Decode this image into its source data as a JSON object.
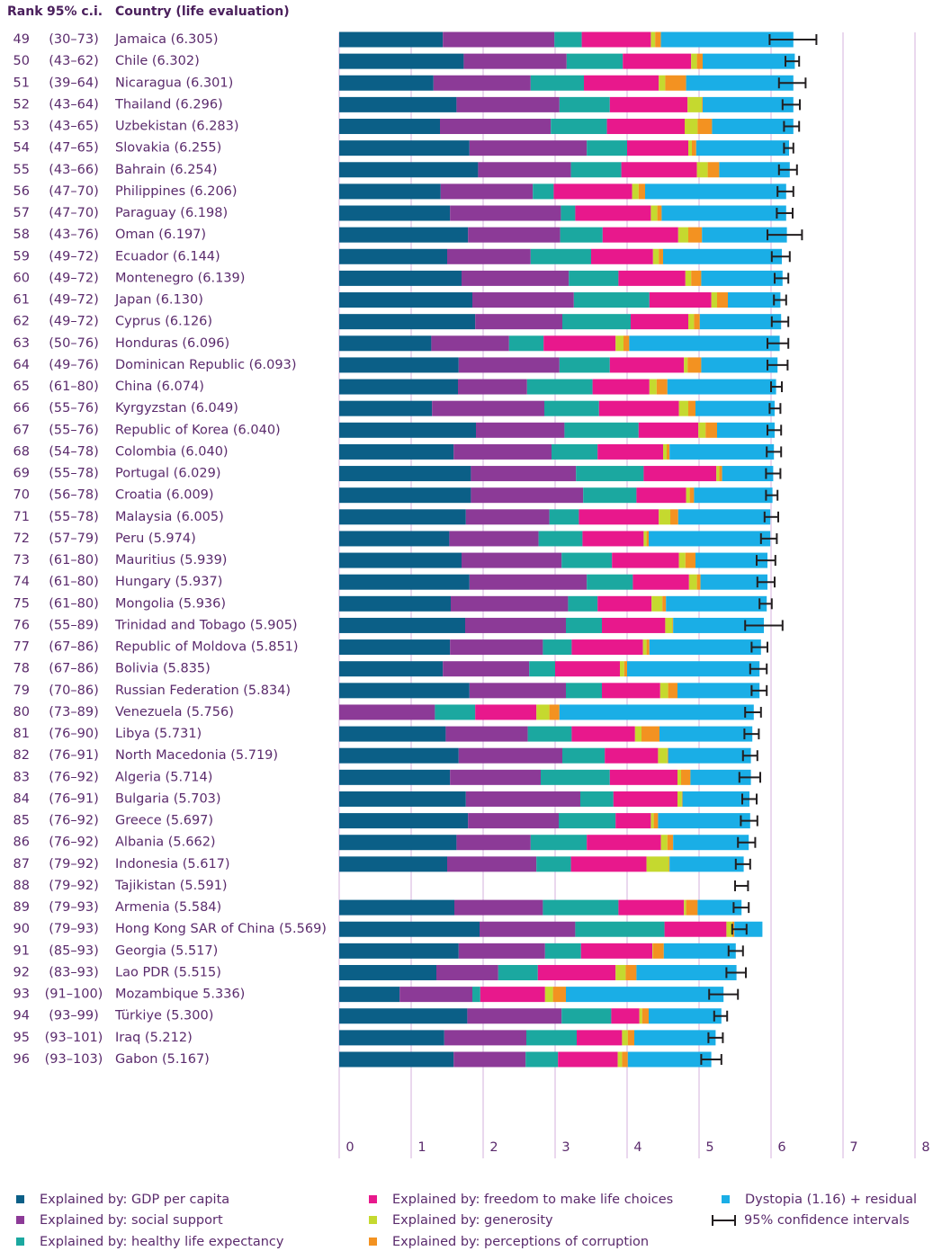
{
  "chart_data": {
    "type": "bar",
    "orientation": "horizontal",
    "stacked": true,
    "headers": [
      "Rank",
      "95% c.i.",
      "Country (life evaluation)"
    ],
    "ranks": [
      49,
      50,
      51,
      52,
      53,
      54,
      55,
      56,
      57,
      58,
      59,
      60,
      61,
      62,
      63,
      64,
      65,
      66,
      67,
      68,
      69,
      70,
      71,
      72,
      73,
      74,
      75,
      76,
      77,
      78,
      79,
      80,
      81,
      82,
      83,
      84,
      85,
      86,
      87,
      88,
      89,
      90,
      91,
      92,
      93,
      94,
      95,
      96
    ],
    "ci_text": [
      "(30–73)",
      "(43–62)",
      "(39–64)",
      "(43–64)",
      "(43–65)",
      "(47–65)",
      "(43–66)",
      "(47–70)",
      "(47–70)",
      "(43–76)",
      "(49–72)",
      "(49–72)",
      "(49–72)",
      "(49–72)",
      "(50–76)",
      "(49–76)",
      "(61–80)",
      "(55–76)",
      "(55–76)",
      "(54–78)",
      "(55–78)",
      "(56–78)",
      "(55–78)",
      "(57–79)",
      "(61–80)",
      "(61–80)",
      "(61–80)",
      "(55–89)",
      "(67–86)",
      "(67–86)",
      "(70–86)",
      "(73–89)",
      "(76–90)",
      "(76–91)",
      "(76–92)",
      "(76–91)",
      "(76–92)",
      "(76–92)",
      "(79–92)",
      "(79–92)",
      "(79–93)",
      "(79–93)",
      "(85–93)",
      "(83–93)",
      "(91–100)",
      "(93–99)",
      "(93–101)",
      "(93–103)"
    ],
    "categories": [
      "Jamaica (6.305)",
      "Chile (6.302)",
      "Nicaragua (6.301)",
      "Thailand (6.296)",
      "Uzbekistan (6.283)",
      "Slovakia (6.255)",
      "Bahrain (6.254)",
      "Philippines (6.206)",
      "Paraguay (6.198)",
      "Oman (6.197)",
      "Ecuador (6.144)",
      "Montenegro (6.139)",
      "Japan (6.130)",
      "Cyprus (6.126)",
      "Honduras (6.096)",
      "Dominican Republic (6.093)",
      "China (6.074)",
      "Kyrgyzstan (6.049)",
      "Republic of Korea (6.040)",
      "Colombia (6.040)",
      "Portugal (6.029)",
      "Croatia (6.009)",
      "Malaysia (6.005)",
      "Peru (5.974)",
      "Mauritius (5.939)",
      "Hungary (5.937)",
      "Mongolia (5.936)",
      "Trinidad and Tobago (5.905)",
      "Republic of Moldova (5.851)",
      "Bolivia (5.835)",
      "Russian Federation (5.834)",
      "Venezuela (5.756)",
      "Libya (5.731)",
      "North Macedonia (5.719)",
      "Algeria (5.714)",
      "Bulgaria (5.703)",
      "Greece (5.697)",
      "Albania (5.662)",
      "Indonesia (5.617)",
      "Tajikistan (5.591)",
      "Armenia  (5.584)",
      "Hong Kong SAR of China (5.569)",
      "Georgia (5.517)",
      "Lao PDR (5.515)",
      "Mozambique 5.336)",
      "Türkiye (5.300)",
      "Iraq (5.212)",
      "Gabon (5.167)"
    ],
    "series": [
      {
        "name": "Explained by: GDP per capita",
        "color": "#0b5f87",
        "values": [
          1.44,
          1.73,
          1.31,
          1.63,
          1.4,
          1.81,
          1.93,
          1.41,
          1.54,
          1.79,
          1.5,
          1.7,
          1.85,
          1.89,
          1.28,
          1.66,
          1.65,
          1.29,
          1.9,
          1.59,
          1.83,
          1.83,
          1.76,
          1.53,
          1.7,
          1.81,
          1.55,
          1.75,
          1.54,
          1.44,
          1.81,
          0,
          1.48,
          1.66,
          1.54,
          1.76,
          1.79,
          1.63,
          1.5,
          null,
          1.6,
          1.95,
          1.66,
          1.35,
          0.84,
          1.78,
          1.46,
          1.59
        ]
      },
      {
        "name": "Explained by: social support",
        "color": "#8c3a97",
        "values": [
          1.55,
          1.43,
          1.35,
          1.43,
          1.54,
          1.63,
          1.29,
          1.28,
          1.54,
          1.28,
          1.16,
          1.49,
          1.41,
          1.21,
          1.08,
          1.4,
          0.96,
          1.56,
          1.23,
          1.36,
          1.46,
          1.56,
          1.16,
          1.24,
          1.39,
          1.63,
          1.63,
          1.4,
          1.29,
          1.2,
          1.34,
          1.33,
          1.14,
          1.44,
          1.26,
          1.59,
          1.26,
          1.03,
          1.24,
          null,
          1.23,
          1.33,
          1.2,
          0.86,
          1.01,
          1.31,
          1.14,
          1.0
        ]
      },
      {
        "name": "Explained by: healthy life expectancy",
        "color": "#1ba8a0",
        "values": [
          0.38,
          0.78,
          0.74,
          0.7,
          0.78,
          0.56,
          0.7,
          0.29,
          0.2,
          0.59,
          0.84,
          0.69,
          1.05,
          0.95,
          0.48,
          0.7,
          0.91,
          0.76,
          1.03,
          0.64,
          0.94,
          0.74,
          0.41,
          0.61,
          0.7,
          0.64,
          0.41,
          0.5,
          0.4,
          0.36,
          0.5,
          0.56,
          0.61,
          0.59,
          0.96,
          0.46,
          0.79,
          0.78,
          0.48,
          null,
          1.05,
          1.24,
          0.5,
          0.55,
          0.11,
          0.69,
          0.7,
          0.45
        ]
      },
      {
        "name": "Explained by: freedom to make life choices",
        "color": "#e8188c",
        "values": [
          0.96,
          0.95,
          1.04,
          1.08,
          1.08,
          0.85,
          1.05,
          1.09,
          1.05,
          1.05,
          0.86,
          0.93,
          0.86,
          0.8,
          1.0,
          1.03,
          0.79,
          1.11,
          0.83,
          0.91,
          1.01,
          0.69,
          1.11,
          0.85,
          0.93,
          0.78,
          0.75,
          0.88,
          0.99,
          0.9,
          0.81,
          0.85,
          0.88,
          0.74,
          0.94,
          0.89,
          0.49,
          1.03,
          1.05,
          null,
          0.91,
          0.86,
          0.99,
          1.08,
          0.9,
          0.39,
          0.63,
          0.83
        ]
      },
      {
        "name": "Explained by: generosity",
        "color": "#c5d92f",
        "values": [
          0.06,
          0.08,
          0.09,
          0.2,
          0.18,
          0.05,
          0.15,
          0.09,
          0.09,
          0.14,
          0.08,
          0.08,
          0.08,
          0.08,
          0.11,
          0.05,
          0.1,
          0.13,
          0.1,
          0.05,
          0.04,
          0.05,
          0.16,
          0.04,
          0.09,
          0.11,
          0.15,
          0.1,
          0.05,
          0.06,
          0.11,
          0.18,
          0.09,
          0.13,
          0.05,
          0.06,
          0.04,
          0.09,
          0.31,
          null,
          0.03,
          0.08,
          0.01,
          0.14,
          0.11,
          0.04,
          0.08,
          0.06
        ]
      },
      {
        "name": "Explained by: perceptions of corruption",
        "color": "#f39221",
        "values": [
          0.08,
          0.08,
          0.29,
          0.01,
          0.2,
          0.06,
          0.16,
          0.09,
          0.06,
          0.19,
          0.06,
          0.14,
          0.15,
          0.08,
          0.08,
          0.19,
          0.15,
          0.1,
          0.16,
          0.04,
          0.04,
          0.06,
          0.11,
          0.03,
          0.14,
          0.05,
          0.05,
          0.01,
          0.04,
          0.04,
          0.13,
          0.14,
          0.25,
          0.01,
          0.13,
          0.01,
          0.06,
          0.08,
          0.01,
          null,
          0.16,
          0.03,
          0.15,
          0.15,
          0.18,
          0.09,
          0.09,
          0.08
        ]
      },
      {
        "name": "Dystopia (1.16) + residual",
        "color": "#1aaee6",
        "values": [
          1.84,
          1.28,
          1.49,
          1.26,
          1.13,
          1.29,
          0.98,
          1.96,
          1.73,
          1.18,
          1.65,
          1.13,
          0.73,
          1.13,
          2.09,
          1.06,
          1.51,
          1.1,
          0.8,
          1.45,
          0.71,
          1.09,
          1.28,
          1.69,
          1.0,
          0.93,
          1.4,
          1.26,
          1.55,
          1.84,
          1.14,
          2.7,
          1.29,
          1.15,
          0.84,
          0.93,
          1.28,
          1.05,
          1.03,
          null,
          0.61,
          0.39,
          1.0,
          1.39,
          2.19,
          1.01,
          1.13,
          1.16
        ]
      }
    ],
    "ci": {
      "name": "95% confidence intervals",
      "color": "#231f20",
      "low": [
        5.98,
        6.2,
        6.11,
        6.16,
        6.18,
        6.18,
        6.11,
        6.09,
        6.08,
        5.95,
        6.01,
        6.05,
        6.04,
        6.01,
        5.95,
        5.95,
        6.0,
        5.98,
        5.95,
        5.94,
        5.93,
        5.93,
        5.91,
        5.86,
        5.8,
        5.81,
        5.84,
        5.64,
        5.73,
        5.71,
        5.73,
        5.64,
        5.63,
        5.61,
        5.56,
        5.6,
        5.58,
        5.54,
        5.51,
        5.5,
        5.48,
        5.46,
        5.41,
        5.38,
        5.14,
        5.21,
        5.13,
        5.03
      ],
      "high": [
        6.63,
        6.39,
        6.48,
        6.4,
        6.39,
        6.31,
        6.36,
        6.31,
        6.3,
        6.43,
        6.26,
        6.24,
        6.21,
        6.24,
        6.24,
        6.23,
        6.15,
        6.13,
        6.14,
        6.14,
        6.13,
        6.09,
        6.1,
        6.08,
        6.06,
        6.05,
        6.01,
        6.16,
        5.95,
        5.94,
        5.94,
        5.86,
        5.83,
        5.81,
        5.85,
        5.8,
        5.81,
        5.78,
        5.71,
        5.68,
        5.69,
        5.66,
        5.61,
        5.65,
        5.54,
        5.39,
        5.33,
        5.31
      ]
    },
    "xlim": [
      0,
      8
    ],
    "xticks": [
      0,
      1,
      2,
      3,
      4,
      5,
      6,
      7,
      8
    ],
    "grid": true
  }
}
